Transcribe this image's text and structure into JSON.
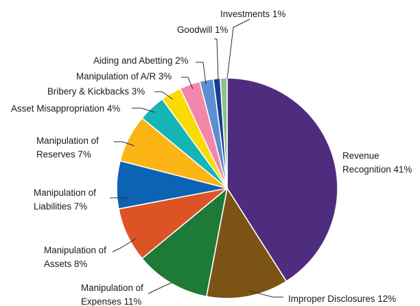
{
  "chart_data": {
    "type": "pie",
    "title": "",
    "slices": [
      {
        "label_lines": [
          "Revenue",
          "Recognition 41%"
        ],
        "category": "Revenue Recognition",
        "value": 41,
        "color": "#4e2d7f"
      },
      {
        "label_lines": [
          "Improper Disclosures 12%"
        ],
        "category": "Improper Disclosures",
        "value": 12,
        "color": "#7b5314"
      },
      {
        "label_lines": [
          "Manipulation of",
          "Expenses 11%"
        ],
        "category": "Manipulation of Expenses",
        "value": 11,
        "color": "#1d7a37"
      },
      {
        "label_lines": [
          "Manipulation of",
          "Assets 8%"
        ],
        "category": "Manipulation of Assets",
        "value": 8,
        "color": "#dc5425"
      },
      {
        "label_lines": [
          "Manipulation of",
          "Liabilities 7%"
        ],
        "category": "Manipulation of Liabilities",
        "value": 7,
        "color": "#0c63b3"
      },
      {
        "label_lines": [
          "Manipulation of",
          "Reserves 7%"
        ],
        "category": "Manipulation of Reserves",
        "value": 7,
        "color": "#fdb515"
      },
      {
        "label_lines": [
          "Asset Misappropriation 4%"
        ],
        "category": "Asset Misappropriation",
        "value": 4,
        "color": "#16b4b4"
      },
      {
        "label_lines": [
          "Bribery & Kickbacks 3%"
        ],
        "category": "Bribery & Kickbacks",
        "value": 3,
        "color": "#f9db05"
      },
      {
        "label_lines": [
          "Manipulation of A/R 3%"
        ],
        "category": "Manipulation of A/R",
        "value": 3,
        "color": "#f387ab"
      },
      {
        "label_lines": [
          "Aiding and Abetting 2%"
        ],
        "category": "Aiding and Abetting",
        "value": 2,
        "color": "#5b8fd1"
      },
      {
        "label_lines": [
          "Goodwill 1%"
        ],
        "category": "Goodwill",
        "value": 1,
        "color": "#163f93"
      },
      {
        "label_lines": [
          "Investments 1%"
        ],
        "category": "Investments",
        "value": 1,
        "color": "#8fc088"
      }
    ],
    "legend": "none",
    "start": "12 o'clock",
    "direction": "clockwise"
  }
}
